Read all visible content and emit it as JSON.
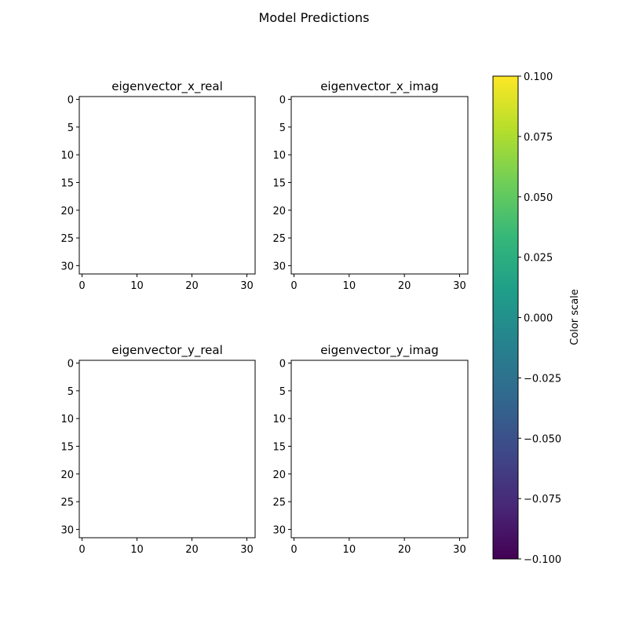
{
  "figure_title": "Model Predictions",
  "chart_data": [
    {
      "type": "heatmap",
      "title": "eigenvector_x_real",
      "xlabel": "",
      "ylabel": "",
      "xticks": [
        0,
        10,
        20,
        30
      ],
      "yticks": [
        0,
        5,
        10,
        15,
        20,
        25,
        30
      ],
      "xlim": [
        -0.5,
        31.5
      ],
      "ylim": [
        31.5,
        -0.5
      ],
      "values": []
    },
    {
      "type": "heatmap",
      "title": "eigenvector_x_imag",
      "xlabel": "",
      "ylabel": "",
      "xticks": [
        0,
        10,
        20,
        30
      ],
      "yticks": [
        0,
        5,
        10,
        15,
        20,
        25,
        30
      ],
      "xlim": [
        -0.5,
        31.5
      ],
      "ylim": [
        31.5,
        -0.5
      ],
      "values": []
    },
    {
      "type": "heatmap",
      "title": "eigenvector_y_real",
      "xlabel": "",
      "ylabel": "",
      "xticks": [
        0,
        10,
        20,
        30
      ],
      "yticks": [
        0,
        5,
        10,
        15,
        20,
        25,
        30
      ],
      "xlim": [
        -0.5,
        31.5
      ],
      "ylim": [
        31.5,
        -0.5
      ],
      "values": []
    },
    {
      "type": "heatmap",
      "title": "eigenvector_y_imag",
      "xlabel": "",
      "ylabel": "",
      "xticks": [
        0,
        10,
        20,
        30
      ],
      "yticks": [
        0,
        5,
        10,
        15,
        20,
        25,
        30
      ],
      "xlim": [
        -0.5,
        31.5
      ],
      "ylim": [
        31.5,
        -0.5
      ],
      "values": []
    }
  ],
  "colorbar": {
    "label": "Color scale",
    "colormap": "viridis",
    "range": [
      -0.1,
      0.1
    ],
    "ticks": [
      -0.1,
      -0.075,
      -0.05,
      -0.025,
      0.0,
      0.025,
      0.05,
      0.075,
      0.1
    ],
    "tick_labels": [
      "−0.100",
      "−0.075",
      "−0.050",
      "−0.025",
      "0.000",
      "0.025",
      "0.050",
      "0.075",
      "0.100"
    ],
    "colors": [
      "#440154",
      "#482878",
      "#3e4989",
      "#31688e",
      "#26828e",
      "#1f9e89",
      "#35b779",
      "#6ece58",
      "#b5de2b",
      "#fde725"
    ]
  }
}
